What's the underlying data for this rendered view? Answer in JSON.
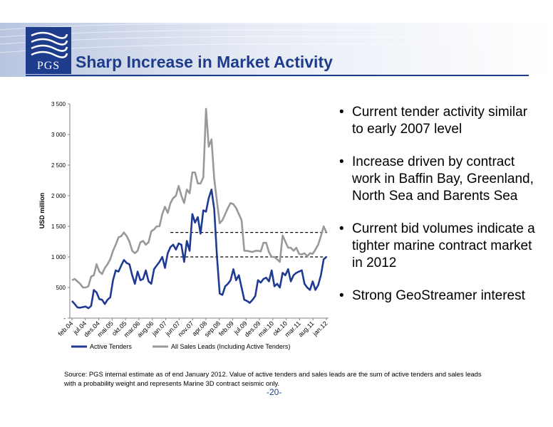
{
  "slide": {
    "title": "Sharp Increase in Market Activity",
    "logo_text": "PGS",
    "bullets": [
      "Current tender activity similar to early 2007 level",
      "Increase driven by contract work in Baffin Bay, Greenland, North Sea and Barents Sea",
      "Current bid volumes indicate a tighter marine contract market in 2012",
      "Strong GeoStreamer interest"
    ],
    "source": "Source: PGS internal estimate as of end January 2012. Value of active tenders and sales leads are the sum of active tenders and sales leads with a probability weight and represents Marine 3D contract seismic only.",
    "page_number": "-20-"
  },
  "colors": {
    "brand_blue": "#1d3c8c",
    "active_tenders": "#1f3a93",
    "sales_leads": "#999999"
  },
  "chart_data": {
    "type": "line",
    "title": "",
    "xlabel": "",
    "ylabel": "USD million",
    "ylim": [
      0,
      3500
    ],
    "yticks": [
      0,
      500,
      1000,
      1500,
      2000,
      2500,
      3000,
      3500
    ],
    "ytick_labels": [
      "-",
      "500",
      "1 000",
      "1 500",
      "2 000",
      "2 500",
      "3 000",
      "3 500"
    ],
    "xtick_labels": [
      "feb.04",
      "jul.04",
      "des.04",
      "mai.05",
      "okt.05",
      "mar.06",
      "aug.06",
      "jan.07",
      "jun.07",
      "nov.07",
      "apr.08",
      "sep.08",
      "feb.09",
      "jul.09",
      "des.09",
      "mai.10",
      "okt.10",
      "mar.11",
      "aug.11",
      "jan.12"
    ],
    "legend_placement": "bottom",
    "reference_lines": [
      {
        "value": 1400,
        "style": "dashed"
      }
    ],
    "series": [
      {
        "name": "Active Tenders",
        "values": [
          280,
          230,
          175,
          170,
          180,
          190,
          160,
          200,
          460,
          420,
          310,
          300,
          230,
          300,
          340,
          620,
          780,
          760,
          860,
          950,
          900,
          880,
          700,
          560,
          760,
          620,
          640,
          780,
          600,
          560,
          800,
          860,
          920,
          1000,
          820,
          1060,
          1160,
          1200,
          1120,
          1220,
          1200,
          920,
          1260,
          1100,
          1700,
          1560,
          1650,
          1380,
          1760,
          1740,
          1960,
          2100,
          1780,
          1000,
          400,
          380,
          520,
          560,
          620,
          800,
          620,
          700,
          500,
          300,
          280,
          250,
          300,
          360,
          620,
          580,
          640,
          660,
          600,
          780,
          520,
          560,
          500,
          740,
          700,
          800,
          600,
          700,
          740,
          760,
          780,
          560,
          500,
          460,
          600,
          460,
          540,
          700,
          960,
          1000
        ]
      },
      {
        "name": "All Sales Leads (Including Active Tenders)",
        "values": [
          620,
          640,
          600,
          560,
          500,
          500,
          520,
          680,
          700,
          880,
          760,
          720,
          820,
          880,
          960,
          1100,
          1200,
          1320,
          1340,
          1400,
          1340,
          1250,
          1100,
          1060,
          1100,
          1240,
          1260,
          1200,
          1240,
          1420,
          1450,
          1500,
          1500,
          1700,
          1820,
          1720,
          1880,
          1960,
          2000,
          2160,
          2000,
          1880,
          2100,
          2040,
          2380,
          2380,
          2200,
          2200,
          2300,
          3420,
          2800,
          2920,
          2280,
          1900,
          1550,
          1600,
          1700,
          1800,
          1880,
          1860,
          1800,
          1700,
          1600,
          1100,
          1100,
          1090,
          1080,
          1100,
          1100,
          1090,
          1230,
          1230,
          1080,
          1000,
          1000,
          960,
          920,
          1350,
          1250,
          1150,
          1150,
          1100,
          1150,
          1050,
          1040,
          1060,
          1010,
          1060,
          1050,
          1120,
          1200,
          1340,
          1500,
          1400
        ]
      }
    ]
  }
}
